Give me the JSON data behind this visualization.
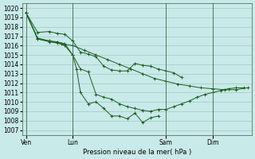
{
  "title": "Pression niveau de la mer( hPa )",
  "bg_color": "#c8eae8",
  "grid_color": "#a0c8c8",
  "line_color": "#1a5e20",
  "ylim": [
    1006.5,
    1020.5
  ],
  "yticks": [
    1007,
    1008,
    1009,
    1010,
    1011,
    1012,
    1013,
    1014,
    1015,
    1016,
    1017,
    1018,
    1019,
    1020
  ],
  "xtick_labels": [
    "Ven",
    "Lun",
    "Sam",
    "Dim"
  ],
  "xtick_positions": [
    0,
    12,
    36,
    48
  ],
  "vline_positions": [
    0,
    12,
    36,
    48
  ],
  "xlim": [
    -1,
    58
  ],
  "lines": [
    {
      "x": [
        0,
        3,
        6,
        9,
        12,
        15,
        18,
        21,
        24,
        27,
        30,
        33,
        36,
        39,
        42,
        45,
        48,
        51,
        54,
        57
      ],
      "y": [
        1019.5,
        1016.7,
        1016.4,
        1016.2,
        1016.0,
        1015.5,
        1015.0,
        1014.5,
        1014.0,
        1013.5,
        1013.0,
        1012.5,
        1012.2,
        1011.9,
        1011.7,
        1011.5,
        1011.4,
        1011.3,
        1011.3,
        1011.5
      ]
    },
    {
      "x": [
        0,
        3,
        6,
        8,
        10,
        12,
        14,
        16,
        18,
        20,
        22,
        24,
        26,
        28,
        30,
        32,
        34,
        36,
        38,
        40
      ],
      "y": [
        1019.5,
        1017.4,
        1017.5,
        1017.3,
        1017.2,
        1016.5,
        1015.3,
        1015.1,
        1014.8,
        1013.8,
        1013.4,
        1013.3,
        1013.3,
        1014.1,
        1013.9,
        1013.8,
        1013.5,
        1013.3,
        1013.1,
        1012.6
      ]
    },
    {
      "x": [
        0,
        3,
        6,
        8,
        10,
        12,
        14,
        16,
        18,
        20,
        22,
        24,
        26,
        28,
        30,
        32,
        34,
        36,
        38,
        40,
        42,
        44,
        46,
        48,
        50,
        52,
        54,
        56
      ],
      "y": [
        1019.5,
        1016.8,
        1016.5,
        1016.3,
        1016.0,
        1015.0,
        1013.5,
        1013.2,
        1010.8,
        1010.5,
        1010.3,
        1009.8,
        1009.5,
        1009.3,
        1009.1,
        1009.0,
        1009.2,
        1009.2,
        1009.5,
        1009.8,
        1010.1,
        1010.5,
        1010.8,
        1011.0,
        1011.2,
        1011.4,
        1011.5,
        1011.5
      ]
    },
    {
      "x": [
        0,
        3,
        6,
        8,
        10,
        12,
        13,
        14,
        16,
        18,
        20,
        22,
        24,
        26,
        28,
        30,
        32,
        34
      ],
      "y": [
        1019.5,
        1016.7,
        1016.5,
        1016.4,
        1016.2,
        1015.0,
        1013.5,
        1011.0,
        1009.8,
        1010.0,
        1009.3,
        1008.5,
        1008.5,
        1008.2,
        1008.8,
        1007.8,
        1008.3,
        1008.5
      ]
    }
  ]
}
